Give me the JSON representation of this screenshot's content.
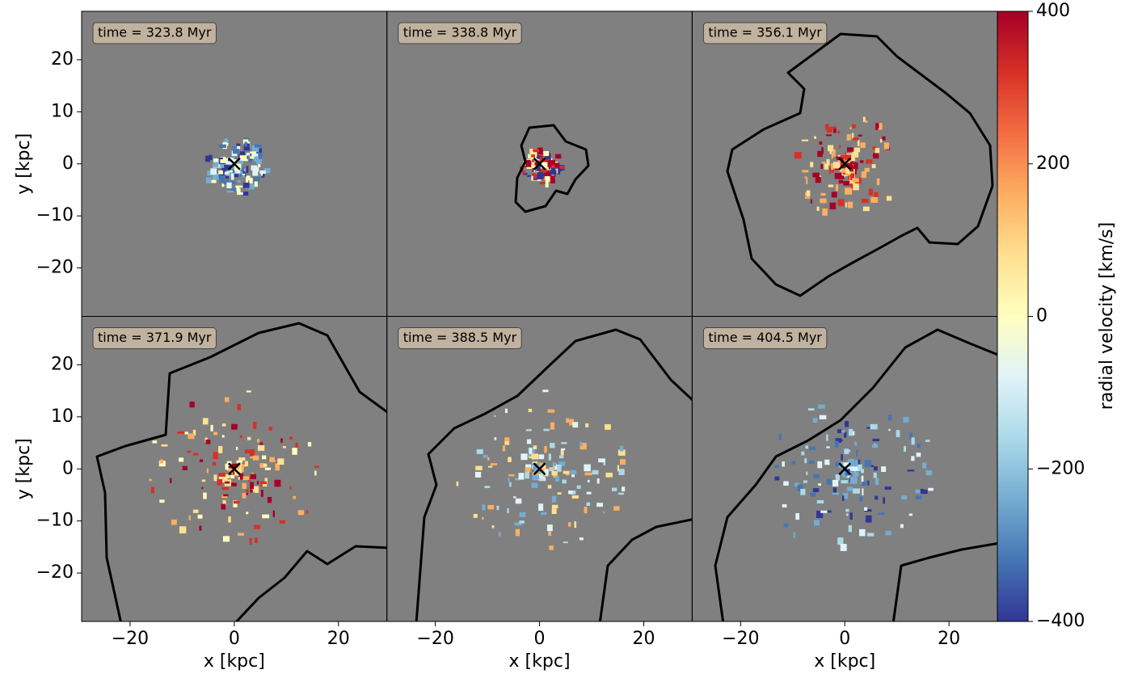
{
  "chart_data": [
    {
      "type": "image",
      "annotation": "time = 323.8 Myr",
      "xlim": [
        -29.3,
        29.3
      ],
      "ylim": [
        -29.3,
        29.3
      ],
      "ylabel": "y [kpc]",
      "yticks": [
        {
          "value": -20,
          "label": "−20"
        },
        {
          "value": -10,
          "label": "−10"
        },
        0,
        10,
        20
      ]
    },
    {
      "type": "image",
      "annotation": "time = 338.8 Myr",
      "xlim": [
        -29.3,
        29.3
      ],
      "ylim": [
        -29.3,
        29.3
      ]
    },
    {
      "type": "image",
      "annotation": "time = 356.1 Myr",
      "xlim": [
        -29.3,
        29.3
      ],
      "ylim": [
        -29.3,
        29.3
      ]
    },
    {
      "type": "image",
      "annotation": "time = 371.9 Myr",
      "xlim": [
        -29.3,
        29.3
      ],
      "ylim": [
        -29.3,
        29.3
      ],
      "xlabel": "x [kpc]",
      "xticks": [
        {
          "value": -20,
          "label": "−20"
        },
        0,
        20
      ],
      "ylabel": "y [kpc]",
      "yticks": [
        {
          "value": -20,
          "label": "−20"
        },
        {
          "value": -10,
          "label": "−10"
        },
        0,
        10,
        20
      ]
    },
    {
      "type": "image",
      "annotation": "time = 388.5 Myr",
      "xlim": [
        -29.3,
        29.3
      ],
      "ylim": [
        -29.3,
        29.3
      ],
      "xlabel": "x [kpc]",
      "xticks": [
        {
          "value": -20,
          "label": "−20"
        },
        0,
        20
      ]
    },
    {
      "type": "image",
      "annotation": "time = 404.5 Myr",
      "xlim": [
        -29.3,
        29.3
      ],
      "ylim": [
        -29.3,
        29.3
      ],
      "xlabel": "x [kpc]",
      "xticks": [
        {
          "value": -20,
          "label": "−20"
        },
        0,
        20
      ]
    },
    {
      "type": "colorbar",
      "label": "radial velocity [km/s]",
      "clim": [
        -400,
        400
      ],
      "ticks": [
        {
          "value": -400,
          "label": "−400"
        },
        {
          "value": -200,
          "label": "−200"
        },
        0,
        200,
        400
      ],
      "colors": [
        "#313695",
        "#4575b4",
        "#74add1",
        "#abd9e9",
        "#e0f3f8",
        "#ffffbf",
        "#fee090",
        "#fdae61",
        "#f46d43",
        "#d73027",
        "#a50026"
      ]
    }
  ]
}
